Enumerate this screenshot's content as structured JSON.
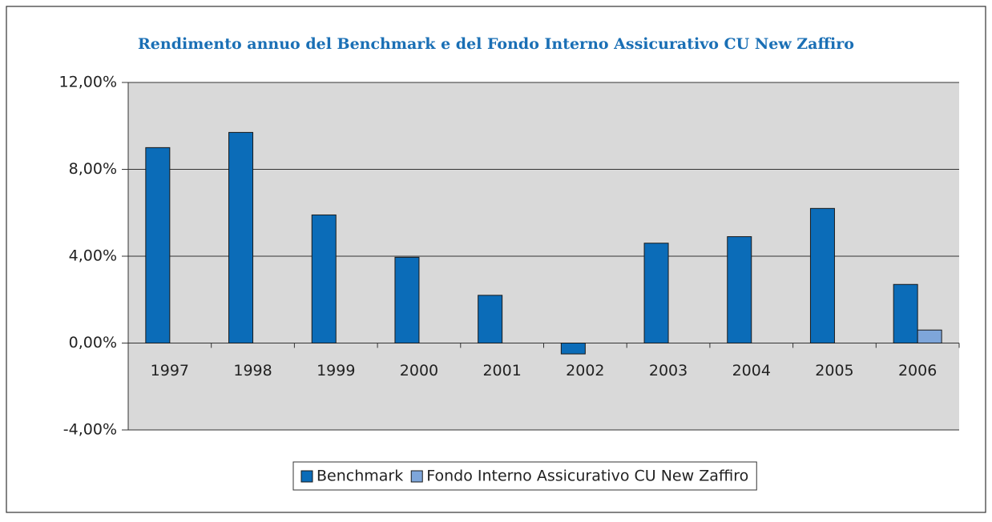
{
  "chart_data": {
    "type": "bar",
    "title": "Rendimento annuo del Benchmark e del Fondo Interno Assicurativo CU New Zaffiro",
    "categories": [
      "1997",
      "1998",
      "1999",
      "2000",
      "2001",
      "2002",
      "2003",
      "2004",
      "2005",
      "2006"
    ],
    "series": [
      {
        "name": "Benchmark",
        "color": "#0b6cb8",
        "values": [
          9.0,
          9.7,
          5.9,
          3.95,
          2.2,
          -0.5,
          4.6,
          4.9,
          6.2,
          2.7
        ]
      },
      {
        "name": "Fondo Interno Assicurativo CU New Zaffiro",
        "color": "#7ea6da",
        "values": [
          null,
          null,
          null,
          null,
          null,
          null,
          null,
          null,
          null,
          0.6
        ]
      }
    ],
    "ylim": [
      -4,
      12
    ],
    "yticks": [
      {
        "value": -4,
        "label": "-4,00%"
      },
      {
        "value": 0,
        "label": "0,00%"
      },
      {
        "value": 4,
        "label": "4,00%"
      },
      {
        "value": 8,
        "label": "8,00%"
      },
      {
        "value": 12,
        "label": "12,00%"
      }
    ],
    "grid": true,
    "legend": "bottom"
  }
}
